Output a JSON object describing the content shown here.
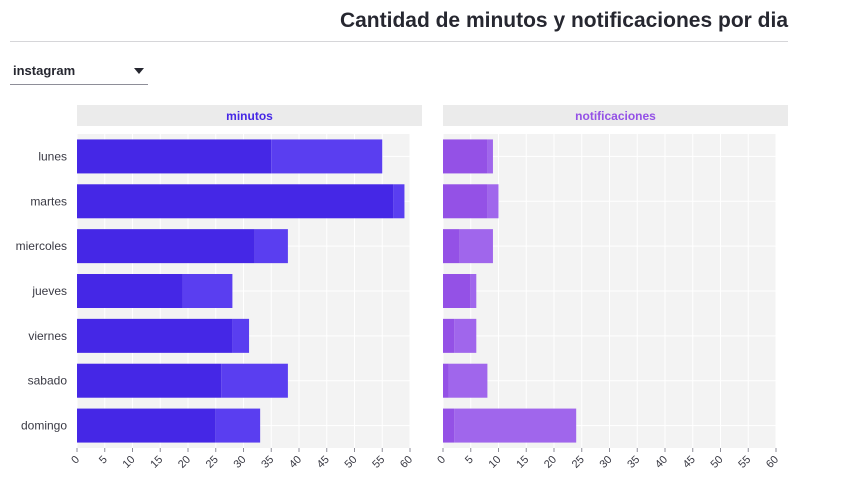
{
  "header": {
    "title": "Cantidad de minutos y notificaciones por dia"
  },
  "filter": {
    "selected": "instagram"
  },
  "colors": {
    "minutos_dark": "#4527e6",
    "minutos_light": "#5a3ef0",
    "notif_dark": "#9451e6",
    "notif_light": "#a066ec",
    "panel_bg": "#f3f3f3",
    "strip_bg": "#ebebeb"
  },
  "chart_data": {
    "type": "bar",
    "orientation": "horizontal",
    "stacked": true,
    "title": "Cantidad de minutos y notificaciones por dia",
    "categories": [
      "lunes",
      "martes",
      "miercoles",
      "jueves",
      "viernes",
      "sabado",
      "domingo"
    ],
    "xlim": [
      0,
      60
    ],
    "xticks": [
      "0",
      "5",
      "10",
      "15",
      "20",
      "25",
      "30",
      "35",
      "40",
      "45",
      "50",
      "55",
      "60"
    ],
    "grid": true,
    "panels": [
      {
        "title": "minutos",
        "series": [
          {
            "values": [
              35,
              57,
              32,
              19,
              28,
              26,
              25
            ]
          },
          {
            "values": [
              20,
              2,
              6,
              9,
              3,
              12,
              8
            ]
          }
        ]
      },
      {
        "title": "notificaciones",
        "series": [
          {
            "values": [
              8,
              8,
              3,
              5,
              2,
              1,
              2
            ]
          },
          {
            "values": [
              1,
              2,
              6,
              1,
              4,
              7,
              22
            ]
          }
        ]
      }
    ]
  }
}
